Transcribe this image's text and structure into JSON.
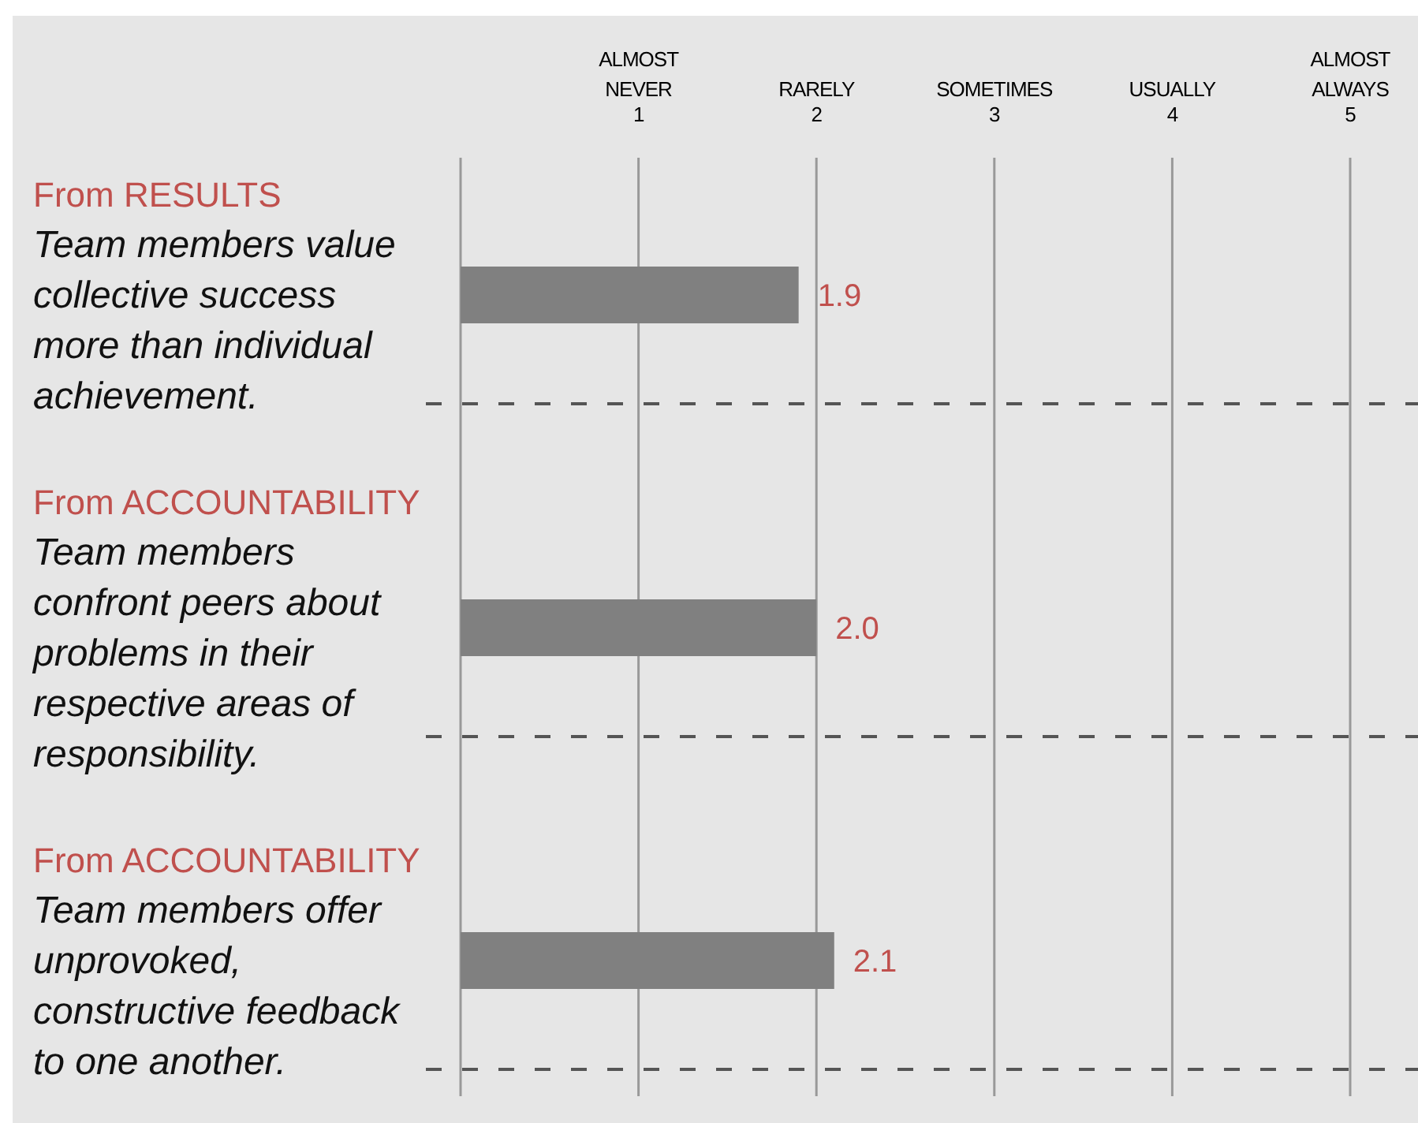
{
  "chart_data": {
    "type": "bar",
    "orientation": "horizontal",
    "categories": [
      "Team members value collective success more than individual achievement.",
      "Team members confront peers about problems in their respective areas of responsibility.",
      "Team members offer unprovoked, constructive feedback to one another."
    ],
    "values": [
      1.9,
      2.0,
      2.1
    ],
    "value_labels": [
      "1.9",
      "2.0",
      "2.1"
    ],
    "color": "#808080",
    "xlim": [
      0,
      5
    ],
    "xticks": [
      {
        "value": 0,
        "label": null
      },
      1,
      2,
      3,
      4,
      5
    ],
    "grid": "x",
    "annotations": [
      "From RESULTS",
      "From ACCOUNTABILITY",
      "From ACCOUNTABILITY",
      "ALMOST\nNEVER",
      "RARELY",
      "SOMETIMES",
      "USUALLY",
      "ALMOST\nALWAYS"
    ]
  }
}
